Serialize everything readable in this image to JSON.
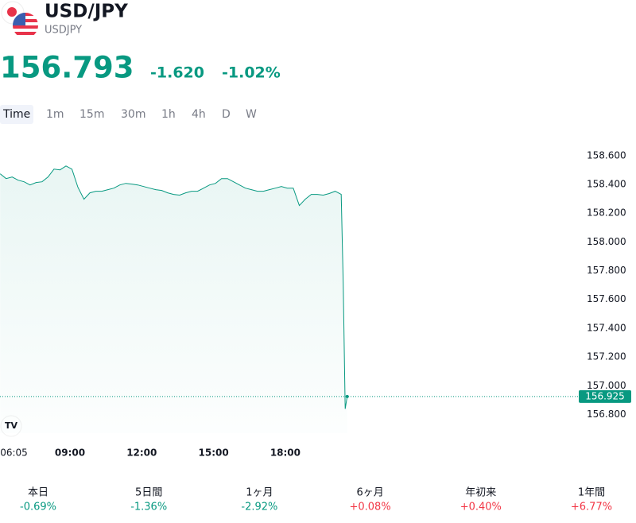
{
  "header": {
    "title": "USD/JPY",
    "symbol": "USDJPY",
    "price": "156.793",
    "change": "-1.620",
    "change_percent": "-1.02%"
  },
  "timeframes": [
    "Time",
    "1m",
    "15m",
    "30m",
    "1h",
    "4h",
    "D",
    "W"
  ],
  "chart_data": {
    "type": "line",
    "x": [
      "06:05",
      "06:20",
      "06:35",
      "06:50",
      "07:05",
      "07:20",
      "07:35",
      "07:50",
      "08:05",
      "08:20",
      "08:35",
      "08:50",
      "09:05",
      "09:20",
      "09:35",
      "09:50",
      "10:05",
      "10:20",
      "10:35",
      "10:50",
      "11:05",
      "11:20",
      "11:35",
      "11:50",
      "12:05",
      "12:20",
      "12:35",
      "12:50",
      "13:05",
      "13:20",
      "13:35",
      "13:50",
      "14:05",
      "14:20",
      "14:35",
      "14:50",
      "15:05",
      "15:20",
      "15:35",
      "15:50",
      "16:05",
      "16:20",
      "16:35",
      "16:50",
      "17:05",
      "17:20",
      "17:35",
      "17:50",
      "18:05",
      "18:20",
      "18:35",
      "18:50",
      "19:05",
      "19:20",
      "19:35",
      "19:50",
      "20:05",
      "20:20",
      "20:25",
      "20:30",
      "20:35"
    ],
    "series": [
      {
        "name": "USDJPY",
        "color": "#089981",
        "values": [
          158.473,
          158.44,
          158.451,
          158.429,
          158.418,
          158.396,
          158.413,
          158.418,
          158.451,
          158.506,
          158.501,
          158.528,
          158.506,
          158.38,
          158.297,
          158.341,
          158.352,
          158.352,
          158.363,
          158.374,
          158.396,
          158.407,
          158.402,
          158.396,
          158.385,
          158.374,
          158.363,
          158.358,
          158.341,
          158.33,
          158.325,
          158.341,
          158.352,
          158.352,
          158.374,
          158.396,
          158.407,
          158.44,
          158.44,
          158.418,
          158.396,
          158.374,
          158.363,
          158.352,
          158.352,
          158.363,
          158.374,
          158.385,
          158.374,
          158.374,
          158.253,
          158.297,
          158.33,
          158.33,
          158.325,
          158.336,
          158.352,
          158.33,
          157.719,
          156.839,
          156.925
        ]
      }
    ],
    "ylim": [
      156.67,
      158.77
    ],
    "yticks": [
      {
        "value": 156.8,
        "label": "156.800"
      },
      {
        "value": 157,
        "label": "157.000"
      },
      {
        "value": 157.2,
        "label": "157.200"
      },
      {
        "value": 157.4,
        "label": "157.400"
      },
      {
        "value": 157.6,
        "label": "157.600"
      },
      {
        "value": 157.8,
        "label": "157.800"
      },
      {
        "value": 158,
        "label": "158.000"
      },
      {
        "value": 158.2,
        "label": "158.200"
      },
      {
        "value": 158.4,
        "label": "158.400"
      },
      {
        "value": 158.6,
        "label": "158.600"
      }
    ],
    "xticks": [
      "06:05",
      "09:00",
      "12:00",
      "15:00",
      "18:00"
    ]
  },
  "performance": [
    {
      "label": "本日",
      "value": "-0.69%"
    },
    {
      "label": "5日間",
      "value": "-1.36%"
    },
    {
      "label": "1ヶ月",
      "value": "-2.92%"
    },
    {
      "label": "6ヶ月",
      "value": "+0.08%"
    },
    {
      "label": "年初来",
      "value": "+0.40%"
    },
    {
      "label": "1年間",
      "value": "+6.77%"
    }
  ]
}
